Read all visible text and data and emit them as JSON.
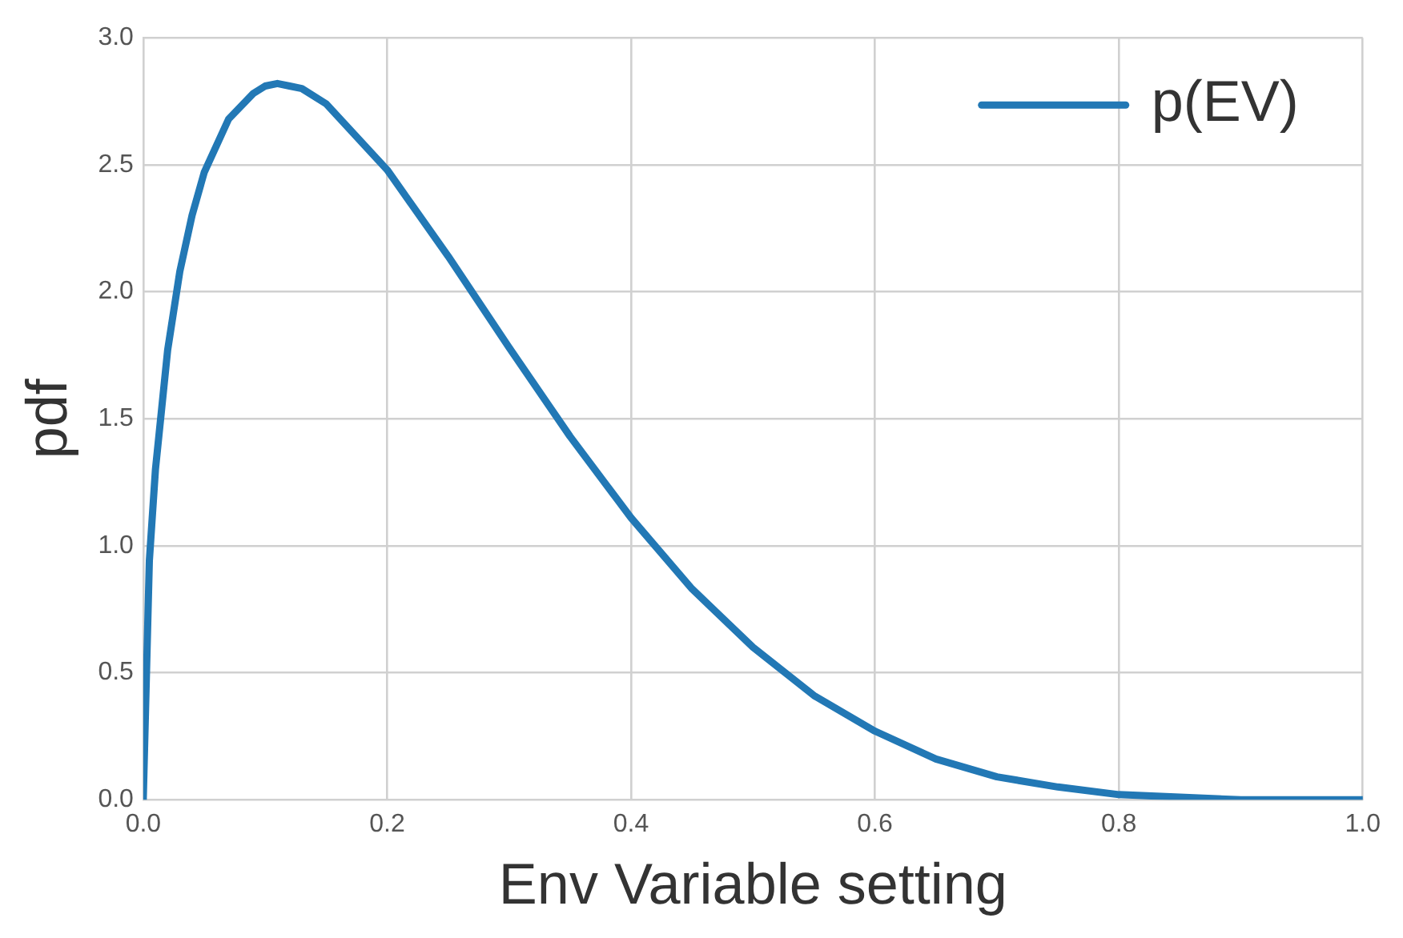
{
  "chart_data": {
    "type": "line",
    "xlabel": "Env Variable setting",
    "ylabel": "pdf",
    "series": [
      {
        "name": "p(EV)",
        "color": "#2278b5",
        "x": [
          0,
          0.005,
          0.01,
          0.02,
          0.03,
          0.04,
          0.05,
          0.07,
          0.09,
          0.1,
          0.11,
          0.12,
          0.13,
          0.15,
          0.2,
          0.25,
          0.3,
          0.35,
          0.4,
          0.45,
          0.5,
          0.55,
          0.6,
          0.65,
          0.7,
          0.75,
          0.8,
          0.85,
          0.9,
          0.95,
          1.0
        ],
        "values": [
          0,
          0.94,
          1.3,
          1.77,
          2.08,
          2.3,
          2.47,
          2.68,
          2.78,
          2.81,
          2.82,
          2.81,
          2.8,
          2.74,
          2.48,
          2.14,
          1.78,
          1.43,
          1.11,
          0.83,
          0.6,
          0.41,
          0.27,
          0.16,
          0.09,
          0.05,
          0.02,
          0.01,
          0,
          0,
          0
        ]
      }
    ],
    "xlim": [
      0,
      1
    ],
    "ylim": [
      0,
      3
    ],
    "xticks": [
      {
        "value": 0,
        "label": "0.0"
      },
      0.2,
      0.4,
      0.6,
      0.8,
      {
        "value": 1,
        "label": "1.0"
      }
    ],
    "yticks": [
      {
        "value": 0,
        "label": "0.0"
      },
      0.5,
      {
        "value": 1,
        "label": "1.0"
      },
      1.5,
      {
        "value": 2,
        "label": "2.0"
      },
      2.5,
      {
        "value": 3,
        "label": "3.0"
      }
    ],
    "grid": true,
    "legend": "top right",
    "marker": "none",
    "line_style": "solid"
  }
}
